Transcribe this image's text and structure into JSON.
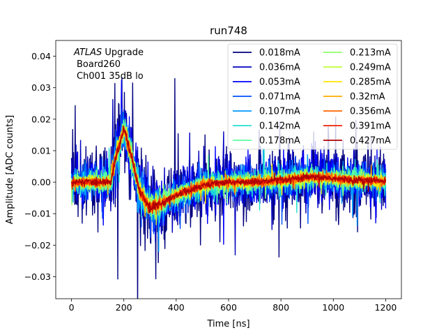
{
  "chart_data": {
    "type": "line",
    "title": "run748",
    "xlabel": "Time [ns]",
    "ylabel": "Amplitude [ADC counts]",
    "xlim": [
      -60,
      1260
    ],
    "ylim": [
      -0.037,
      0.045
    ],
    "xticks": [
      0,
      200,
      400,
      600,
      800,
      1000,
      1200
    ],
    "xtick_labels": [
      "0",
      "200",
      "400",
      "600",
      "800",
      "1000",
      "1200"
    ],
    "yticks": [
      -0.03,
      -0.02,
      -0.01,
      0.0,
      0.01,
      0.02,
      0.03,
      0.04
    ],
    "ytick_labels": [
      "−0.03",
      "−0.02",
      "−0.01",
      "0.00",
      "0.01",
      "0.02",
      "0.03",
      "0.04"
    ],
    "annotation": {
      "line1_italic": "ATLAS",
      "line1_rest": " Upgrade",
      "line2": "Board260",
      "line3": "Ch001 35dB lo"
    },
    "legend_location": "top-right",
    "legend_columns": 2,
    "pulse_shape": {
      "t_ns": [
        0,
        150,
        170,
        200,
        230,
        260,
        300,
        340,
        400,
        500,
        600,
        700,
        800,
        900,
        960,
        1050,
        1200
      ],
      "amplitude": [
        0.0,
        0.0,
        0.008,
        0.017,
        0.008,
        -0.003,
        -0.008,
        -0.007,
        -0.004,
        -0.001,
        0.0,
        0.0,
        0.0005,
        0.0015,
        0.0015,
        0.0008,
        0.0003
      ]
    },
    "series": [
      {
        "name": "0.018mA",
        "color": "#00007f",
        "noise_amplitude": 0.0105
      },
      {
        "name": "0.036mA",
        "color": "#0000c0",
        "noise_amplitude": 0.008
      },
      {
        "name": "0.053mA",
        "color": "#0000ff",
        "noise_amplitude": 0.0065
      },
      {
        "name": "0.071mA",
        "color": "#0050ff",
        "noise_amplitude": 0.0052
      },
      {
        "name": "0.107mA",
        "color": "#0098ff",
        "noise_amplitude": 0.0042
      },
      {
        "name": "0.142mA",
        "color": "#26e0d0",
        "noise_amplitude": 0.0034
      },
      {
        "name": "0.178mA",
        "color": "#5cffa0",
        "noise_amplitude": 0.0028
      },
      {
        "name": "0.213mA",
        "color": "#8cff6c",
        "noise_amplitude": 0.0024
      },
      {
        "name": "0.249mA",
        "color": "#c0ff36",
        "noise_amplitude": 0.002
      },
      {
        "name": "0.285mA",
        "color": "#ffe600",
        "noise_amplitude": 0.0017
      },
      {
        "name": "0.32mA",
        "color": "#ffaa00",
        "noise_amplitude": 0.0015
      },
      {
        "name": "0.356mA",
        "color": "#ff6400",
        "noise_amplitude": 0.0013
      },
      {
        "name": "0.391mA",
        "color": "#f02000",
        "noise_amplitude": 0.0011
      },
      {
        "name": "0.427mA",
        "color": "#b00000",
        "noise_amplitude": 0.001
      }
    ]
  }
}
